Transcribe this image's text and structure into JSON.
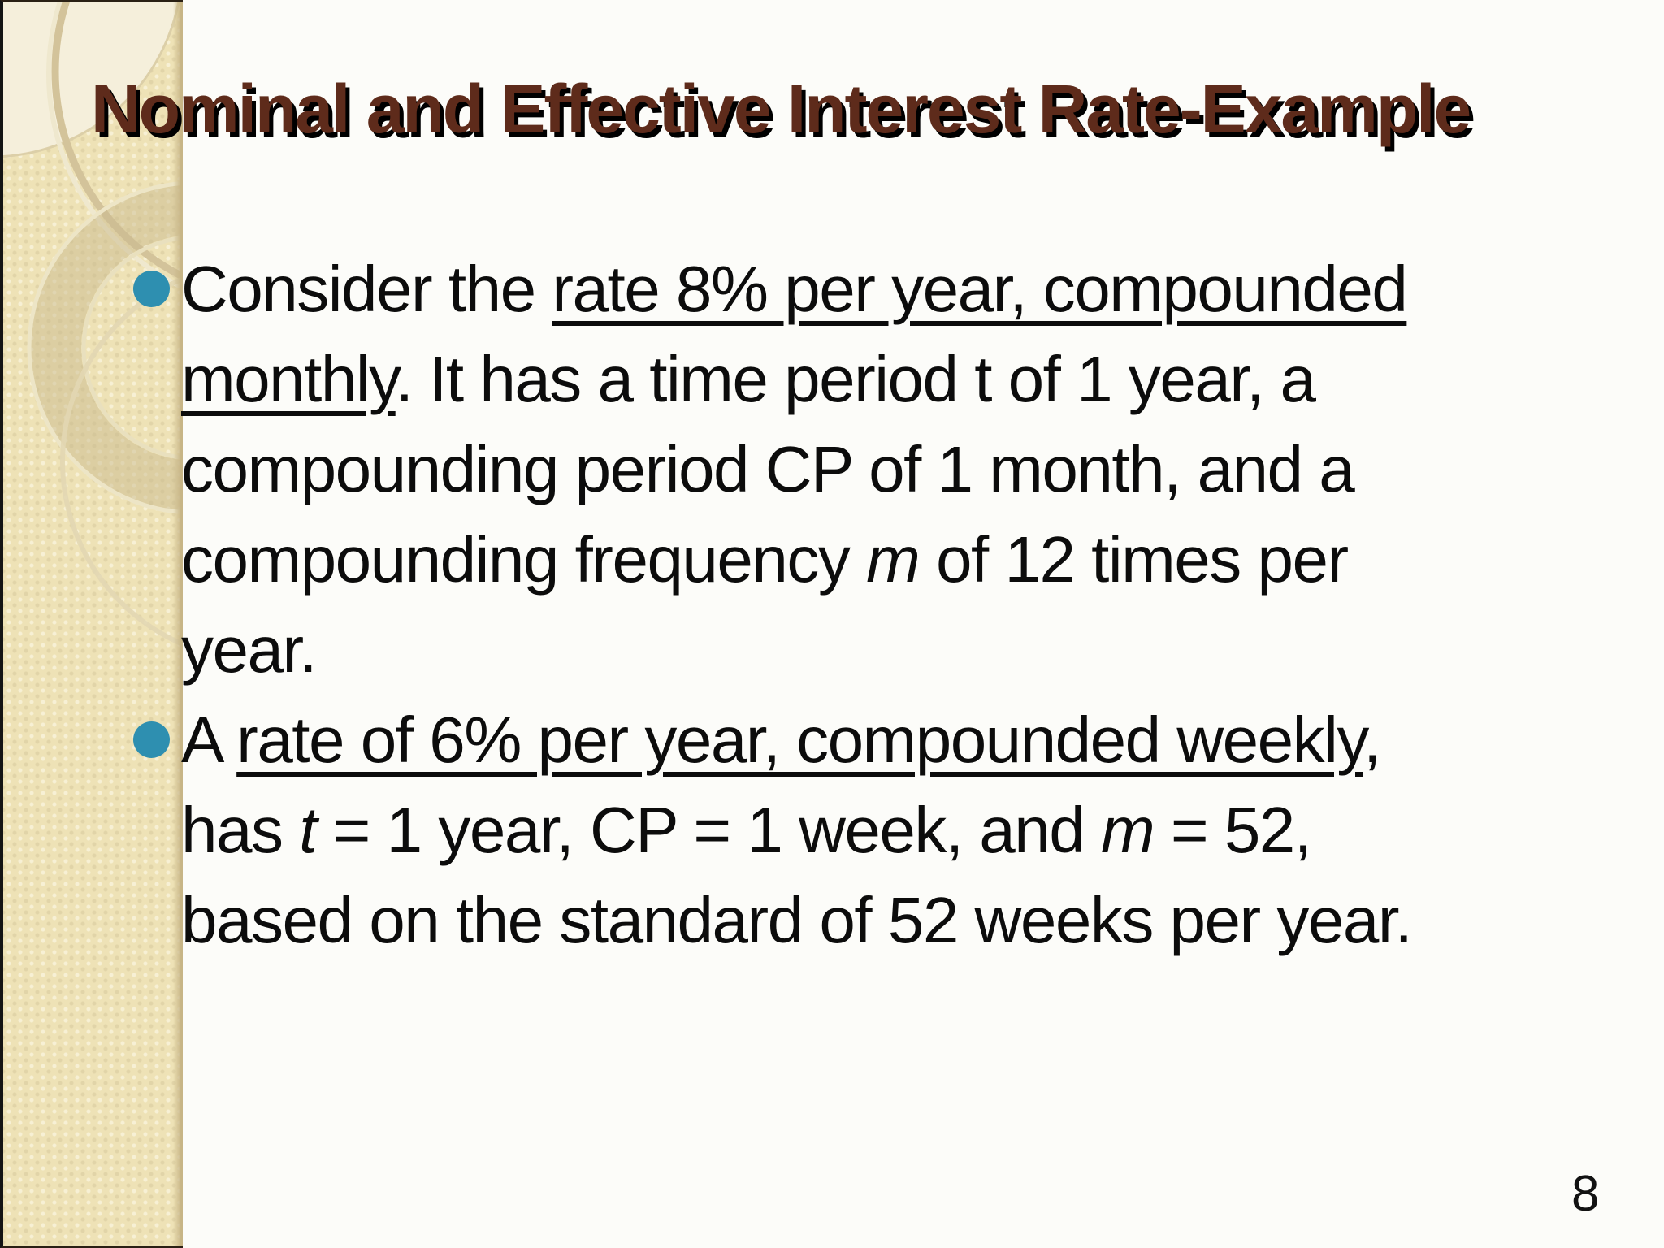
{
  "slide": {
    "title": "Nominal and Effective Interest Rate-Example",
    "page_number": "8",
    "colors": {
      "title_text": "#5E2B1B",
      "title_shadow": "#000000",
      "band": "#EEE2B6",
      "band_edge": "#C7B586",
      "bullet_marker": "#2E8FB0",
      "body_text": "#0C0C0C",
      "background": "#FCFCF9"
    },
    "bullets": [
      {
        "segments": [
          {
            "text": "Consider the "
          },
          {
            "text": "rate 8% per year, compounded",
            "underline": true
          },
          {
            "break": true
          },
          {
            "text": "monthly",
            "underline": true
          },
          {
            "text": ". It has a time period t of 1 year, a"
          },
          {
            "break": true
          },
          {
            "text": "compounding period CP of 1 month, and a"
          },
          {
            "break": true
          },
          {
            "text": "compounding frequency "
          },
          {
            "text": "m",
            "italic": true
          },
          {
            "text": " of 12 times per"
          },
          {
            "break": true
          },
          {
            "text": "year."
          }
        ]
      },
      {
        "segments": [
          {
            "text": "A "
          },
          {
            "text": "rate of 6% per year, compounded weekly",
            "underline": true
          },
          {
            "text": ","
          },
          {
            "break": true
          },
          {
            "text": "has "
          },
          {
            "text": "t",
            "italic": true
          },
          {
            "text": " = 1 year, CP = 1 week, and "
          },
          {
            "text": "m",
            "italic": true
          },
          {
            "text": " = 52,"
          },
          {
            "break": true
          },
          {
            "text": "based on the standard of 52 weeks per year."
          }
        ]
      }
    ]
  }
}
